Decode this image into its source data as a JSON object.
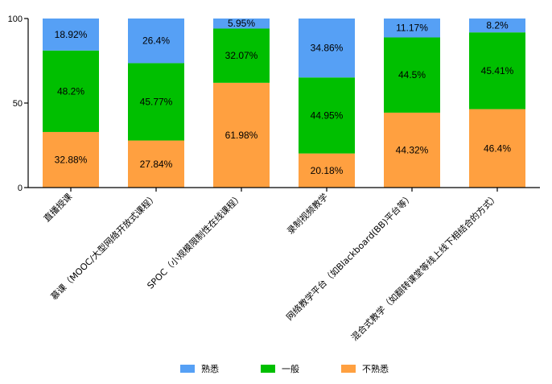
{
  "chart_data": {
    "type": "bar",
    "stacked": true,
    "title": "",
    "xlabel": "",
    "ylabel": "",
    "ylim": [
      0,
      100
    ],
    "yticks": [
      0,
      50,
      100
    ],
    "legend_position": "bottom-center",
    "categories": [
      "直播授课",
      "慕课（MOOC/大型网络开放式课程）",
      "SPOC（小规模限制性在线课程）",
      "录制视频教学",
      "网络教学平台（如Blackboard(BB)平台等）",
      "混合式教学（如翻转课堂等线上线下相结合的方式）"
    ],
    "series": [
      {
        "name": "不熟悉",
        "color": "#FFA040",
        "values": [
          32.88,
          27.84,
          61.98,
          20.18,
          44.32,
          46.4
        ],
        "labels": [
          "32.88%",
          "27.84%",
          "61.98%",
          "20.18%",
          "44.32%",
          "46.4%"
        ]
      },
      {
        "name": "一般",
        "color": "#00BF00",
        "values": [
          48.2,
          45.77,
          32.07,
          44.95,
          44.5,
          45.41
        ],
        "labels": [
          "48.2%",
          "45.77%",
          "32.07%",
          "44.95%",
          "44.5%",
          "45.41%"
        ]
      },
      {
        "name": "熟悉",
        "color": "#56A0F5",
        "values": [
          18.92,
          26.4,
          5.95,
          34.86,
          11.17,
          8.2
        ],
        "labels": [
          "18.92%",
          "26.4%",
          "5.95%",
          "34.86%",
          "11.17%",
          "8.2%"
        ]
      }
    ],
    "legend_order": [
      "熟悉",
      "一般",
      "不熟悉"
    ]
  }
}
